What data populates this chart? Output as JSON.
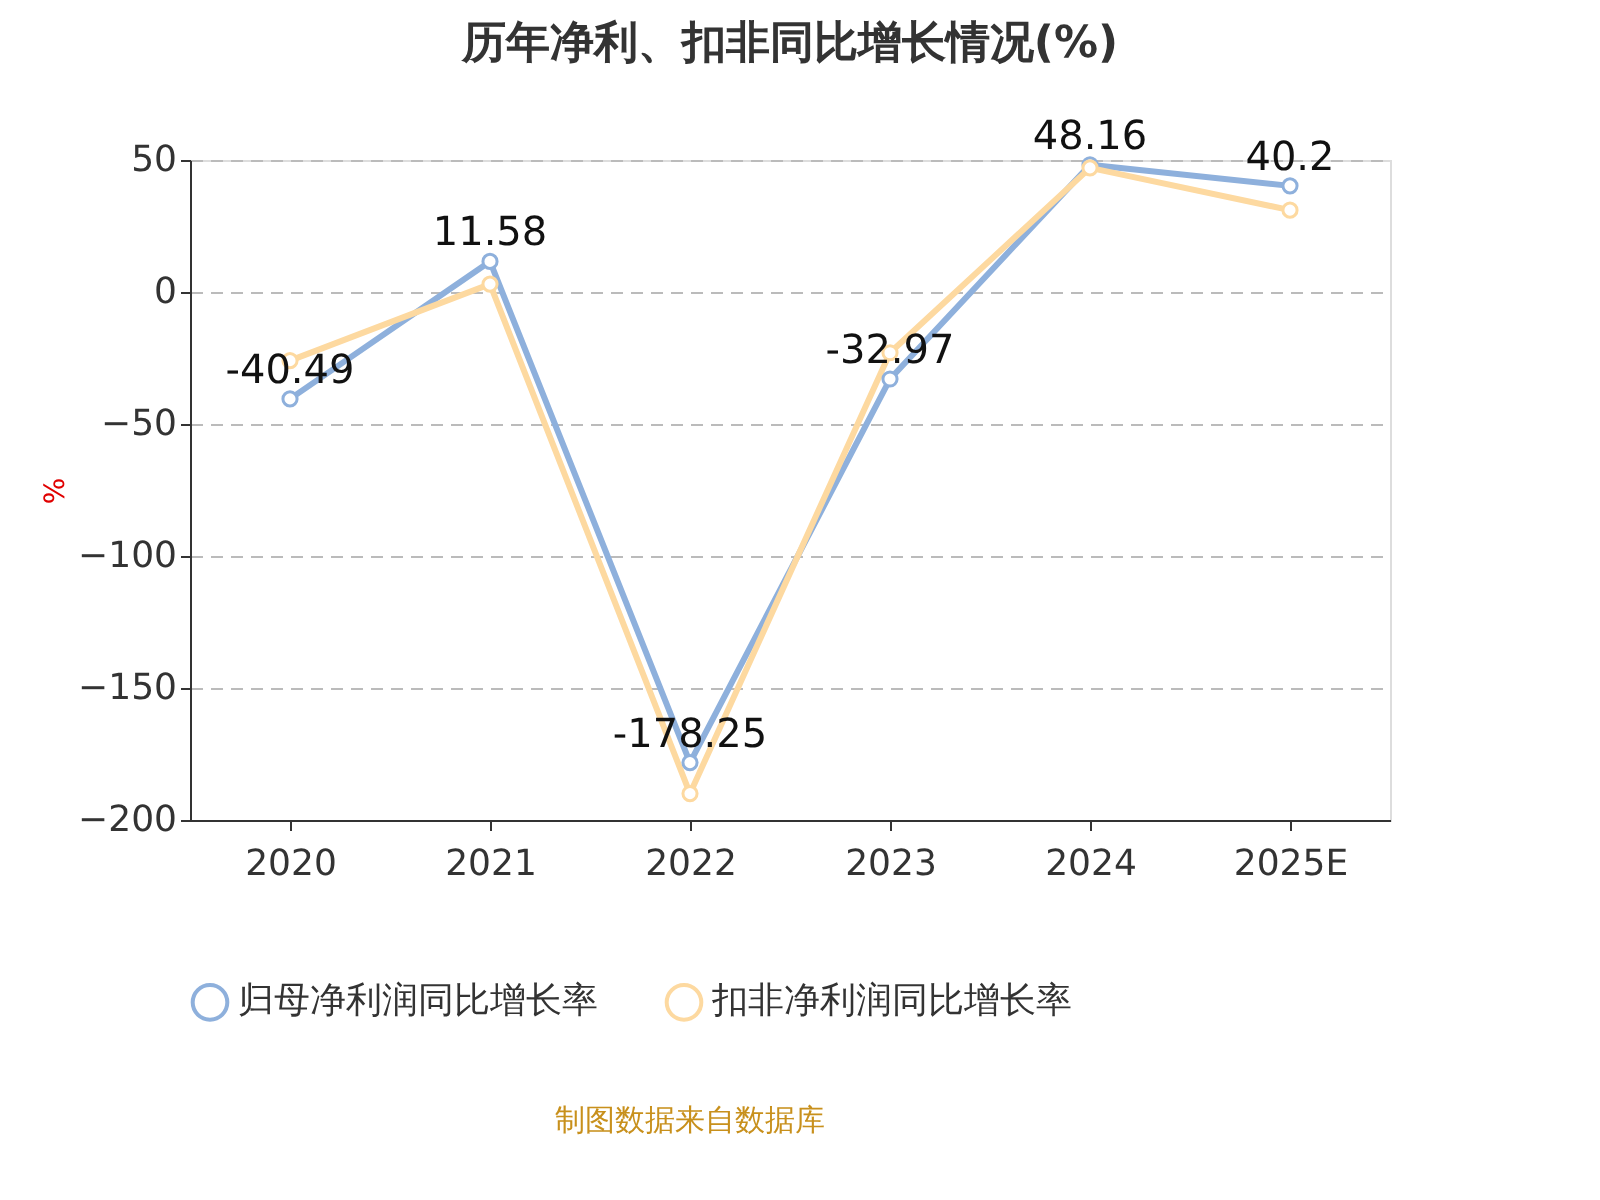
{
  "chart_data": {
    "type": "line",
    "title": "历年净利、扣非同比增长情况(%)",
    "ylabel": "%",
    "categories": [
      "2020",
      "2021",
      "2022",
      "2023",
      "2024",
      "2025E"
    ],
    "series": [
      {
        "name": "归母净利润同比增长率",
        "color": "#8eb0dc",
        "values": [
          -40.49,
          11.58,
          -178.25,
          -32.97,
          48.16,
          40.2
        ],
        "value_labels": [
          "-40.49",
          "11.58",
          "-178.25",
          "-32.97",
          "48.16",
          "40.2"
        ]
      },
      {
        "name": "扣非净利润同比增长率",
        "color": "#fdd9a0",
        "values": [
          -26,
          3,
          -190,
          -23,
          47,
          31
        ]
      }
    ],
    "ylim": [
      -200,
      50
    ],
    "yticks": [
      -200,
      -150,
      -100,
      -50,
      0,
      50
    ],
    "grid": "y",
    "legend": "bottom",
    "marker": "circle",
    "line_style": "solid",
    "annotations": [
      "制图数据来自数据库"
    ]
  }
}
